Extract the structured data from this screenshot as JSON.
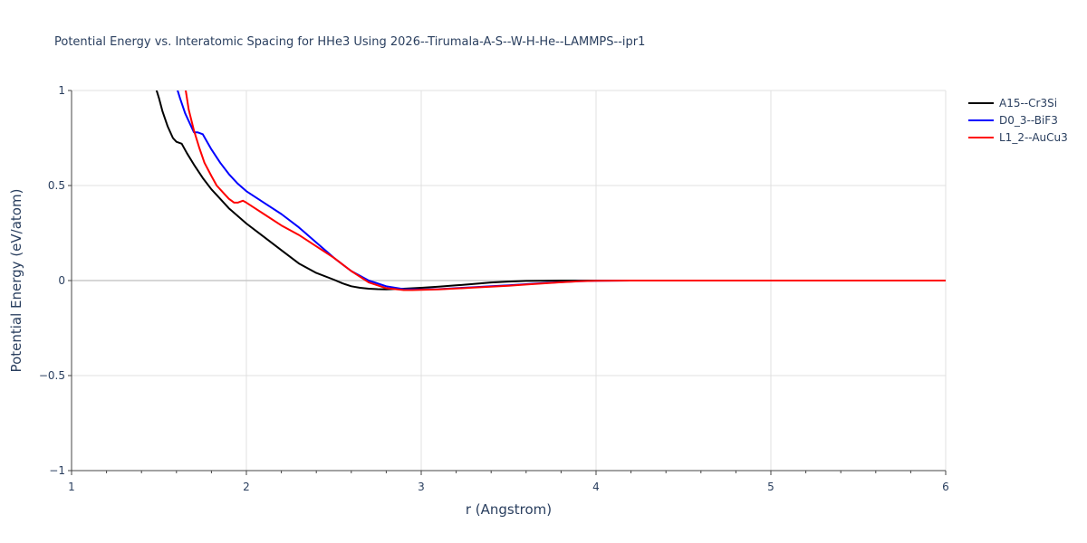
{
  "chart_data": {
    "type": "line",
    "title": "Potential Energy vs. Interatomic Spacing for HHe3 Using 2026--Tirumala-A-S--W-H-He--LAMMPS--ipr1",
    "xlabel": "r (Angstrom)",
    "ylabel": "Potential Energy (eV/atom)",
    "xlim": [
      1,
      6
    ],
    "ylim": [
      -1,
      1
    ],
    "x_ticks": [
      1,
      2,
      3,
      4,
      5,
      6
    ],
    "x_tick_labels": [
      "1",
      "2",
      "3",
      "4",
      "5",
      "6"
    ],
    "y_ticks": [
      -1,
      -0.5,
      0,
      0.5,
      1
    ],
    "y_tick_labels": [
      "−1",
      "−0.5",
      "0",
      "0.5",
      "1"
    ],
    "grid": true,
    "legend_position": "top-right",
    "series": [
      {
        "name": "A15--Cr3Si",
        "color": "#000000",
        "x": [
          1.48,
          1.5,
          1.52,
          1.55,
          1.58,
          1.6,
          1.63,
          1.66,
          1.7,
          1.75,
          1.8,
          1.85,
          1.9,
          1.95,
          2.0,
          2.1,
          2.2,
          2.3,
          2.4,
          2.5,
          2.55,
          2.6,
          2.65,
          2.7,
          2.75,
          2.8,
          2.9,
          3.0,
          3.1,
          3.2,
          3.3,
          3.4,
          3.5,
          3.6,
          3.7,
          3.8,
          3.9,
          4.0,
          4.2,
          4.5,
          5.0,
          5.5,
          6.0
        ],
        "y": [
          1.02,
          0.96,
          0.89,
          0.81,
          0.75,
          0.73,
          0.72,
          0.67,
          0.61,
          0.54,
          0.48,
          0.43,
          0.38,
          0.34,
          0.3,
          0.23,
          0.16,
          0.09,
          0.04,
          0.005,
          -0.015,
          -0.03,
          -0.038,
          -0.043,
          -0.045,
          -0.046,
          -0.043,
          -0.038,
          -0.032,
          -0.025,
          -0.018,
          -0.01,
          -0.005,
          -0.002,
          -0.001,
          0.0,
          0.0,
          0.0,
          0.0,
          0.0,
          0.0,
          0.0,
          0.0
        ]
      },
      {
        "name": "D0_3--BiF3",
        "color": "#0000ff",
        "x": [
          1.6,
          1.62,
          1.65,
          1.68,
          1.7,
          1.72,
          1.75,
          1.8,
          1.85,
          1.9,
          1.95,
          2.0,
          2.1,
          2.2,
          2.3,
          2.4,
          2.5,
          2.6,
          2.7,
          2.8,
          2.9,
          3.0,
          3.1,
          3.2,
          3.3,
          3.4,
          3.5,
          3.6,
          3.7,
          3.8,
          3.9,
          4.0,
          4.2,
          4.5,
          5.0,
          5.5,
          6.0
        ],
        "y": [
          1.02,
          0.96,
          0.88,
          0.82,
          0.78,
          0.78,
          0.77,
          0.69,
          0.62,
          0.56,
          0.51,
          0.47,
          0.41,
          0.35,
          0.28,
          0.2,
          0.12,
          0.05,
          0.0,
          -0.03,
          -0.045,
          -0.047,
          -0.045,
          -0.04,
          -0.035,
          -0.03,
          -0.025,
          -0.019,
          -0.013,
          -0.008,
          -0.004,
          -0.001,
          0.0,
          0.0,
          0.0,
          0.0,
          0.0
        ]
      },
      {
        "name": "L1_2--AuCu3",
        "color": "#ff0000",
        "x": [
          1.65,
          1.67,
          1.7,
          1.73,
          1.76,
          1.8,
          1.83,
          1.87,
          1.9,
          1.93,
          1.95,
          1.98,
          2.0,
          2.05,
          2.1,
          2.2,
          2.3,
          2.4,
          2.5,
          2.6,
          2.7,
          2.8,
          2.9,
          2.95,
          3.0,
          3.1,
          3.2,
          3.3,
          3.4,
          3.5,
          3.6,
          3.7,
          3.8,
          3.9,
          4.0,
          4.2,
          4.5,
          5.0,
          5.5,
          6.0
        ],
        "y": [
          1.02,
          0.9,
          0.79,
          0.7,
          0.62,
          0.55,
          0.5,
          0.46,
          0.43,
          0.41,
          0.41,
          0.42,
          0.41,
          0.38,
          0.35,
          0.29,
          0.24,
          0.18,
          0.12,
          0.05,
          -0.01,
          -0.04,
          -0.05,
          -0.05,
          -0.049,
          -0.046,
          -0.042,
          -0.037,
          -0.032,
          -0.027,
          -0.021,
          -0.015,
          -0.009,
          -0.004,
          -0.001,
          0.0,
          0.0,
          0.0,
          0.0,
          0.0
        ]
      }
    ]
  }
}
